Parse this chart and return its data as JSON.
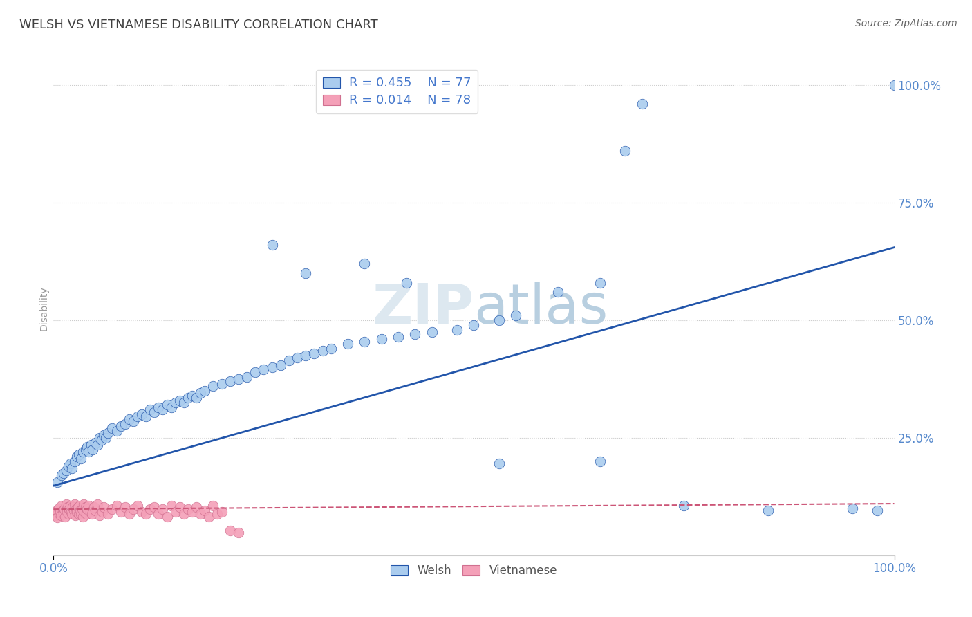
{
  "title": "WELSH VS VIETNAMESE DISABILITY CORRELATION CHART",
  "source": "Source: ZipAtlas.com",
  "ylabel": "Disability",
  "xlim": [
    0,
    1.0
  ],
  "ylim": [
    0.0,
    1.05
  ],
  "welsh_R": 0.455,
  "welsh_N": 77,
  "viet_R": 0.014,
  "viet_N": 78,
  "welsh_color": "#aaccee",
  "viet_color": "#f4a0b8",
  "welsh_line_color": "#2255aa",
  "viet_line_color": "#cc5577",
  "background_color": "#ffffff",
  "grid_color": "#cccccc",
  "watermark_zip_color": "#c8d8e8",
  "watermark_atlas_color": "#a8c0d8",
  "title_color": "#404040",
  "axis_label_color": "#5588cc",
  "legend_color": "#4477cc",
  "welsh_x": [
    0.005,
    0.01,
    0.012,
    0.015,
    0.018,
    0.02,
    0.022,
    0.025,
    0.028,
    0.03,
    0.033,
    0.035,
    0.038,
    0.04,
    0.042,
    0.045,
    0.047,
    0.05,
    0.052,
    0.055,
    0.057,
    0.06,
    0.062,
    0.065,
    0.07,
    0.075,
    0.08,
    0.085,
    0.09,
    0.095,
    0.1,
    0.105,
    0.11,
    0.115,
    0.12,
    0.125,
    0.13,
    0.135,
    0.14,
    0.145,
    0.15,
    0.155,
    0.16,
    0.165,
    0.17,
    0.175,
    0.18,
    0.19,
    0.2,
    0.21,
    0.22,
    0.23,
    0.24,
    0.25,
    0.26,
    0.27,
    0.28,
    0.29,
    0.3,
    0.31,
    0.32,
    0.33,
    0.35,
    0.37,
    0.39,
    0.41,
    0.43,
    0.45,
    0.48,
    0.5,
    0.53,
    0.55,
    0.6,
    0.65,
    0.68,
    0.7,
    0.98
  ],
  "welsh_y": [
    0.155,
    0.17,
    0.175,
    0.18,
    0.19,
    0.195,
    0.185,
    0.2,
    0.21,
    0.215,
    0.205,
    0.22,
    0.225,
    0.23,
    0.22,
    0.235,
    0.225,
    0.24,
    0.235,
    0.25,
    0.245,
    0.255,
    0.25,
    0.26,
    0.27,
    0.265,
    0.275,
    0.28,
    0.29,
    0.285,
    0.295,
    0.3,
    0.295,
    0.31,
    0.305,
    0.315,
    0.31,
    0.32,
    0.315,
    0.325,
    0.33,
    0.325,
    0.335,
    0.34,
    0.335,
    0.345,
    0.35,
    0.36,
    0.365,
    0.37,
    0.375,
    0.38,
    0.39,
    0.395,
    0.4,
    0.405,
    0.415,
    0.42,
    0.425,
    0.43,
    0.435,
    0.44,
    0.45,
    0.455,
    0.46,
    0.465,
    0.47,
    0.475,
    0.48,
    0.49,
    0.5,
    0.51,
    0.56,
    0.58,
    0.86,
    0.96,
    0.095
  ],
  "welsh_x_outliers": [
    0.26,
    0.3,
    0.37,
    0.42,
    0.53,
    0.65,
    0.75,
    0.85,
    0.95,
    1.0
  ],
  "welsh_y_outliers": [
    0.66,
    0.6,
    0.62,
    0.58,
    0.195,
    0.2,
    0.105,
    0.095,
    0.1,
    1.0
  ],
  "viet_x": [
    0.002,
    0.003,
    0.004,
    0.005,
    0.006,
    0.007,
    0.008,
    0.009,
    0.01,
    0.011,
    0.012,
    0.013,
    0.014,
    0.015,
    0.016,
    0.017,
    0.018,
    0.019,
    0.02,
    0.021,
    0.022,
    0.023,
    0.024,
    0.025,
    0.026,
    0.027,
    0.028,
    0.029,
    0.03,
    0.031,
    0.032,
    0.033,
    0.034,
    0.035,
    0.036,
    0.037,
    0.038,
    0.039,
    0.04,
    0.042,
    0.044,
    0.046,
    0.048,
    0.05,
    0.052,
    0.055,
    0.058,
    0.06,
    0.065,
    0.07,
    0.075,
    0.08,
    0.085,
    0.09,
    0.095,
    0.1,
    0.105,
    0.11,
    0.115,
    0.12,
    0.125,
    0.13,
    0.135,
    0.14,
    0.145,
    0.15,
    0.155,
    0.16,
    0.165,
    0.17,
    0.175,
    0.18,
    0.185,
    0.19,
    0.195,
    0.2,
    0.21,
    0.22
  ],
  "viet_y": [
    0.09,
    0.085,
    0.095,
    0.08,
    0.1,
    0.088,
    0.092,
    0.085,
    0.105,
    0.095,
    0.088,
    0.098,
    0.082,
    0.108,
    0.092,
    0.102,
    0.088,
    0.098,
    0.105,
    0.092,
    0.088,
    0.102,
    0.095,
    0.108,
    0.085,
    0.098,
    0.092,
    0.102,
    0.088,
    0.105,
    0.095,
    0.088,
    0.098,
    0.082,
    0.108,
    0.092,
    0.102,
    0.088,
    0.098,
    0.105,
    0.092,
    0.088,
    0.102,
    0.095,
    0.108,
    0.085,
    0.092,
    0.102,
    0.088,
    0.098,
    0.105,
    0.092,
    0.102,
    0.088,
    0.098,
    0.105,
    0.092,
    0.088,
    0.098,
    0.102,
    0.088,
    0.098,
    0.082,
    0.105,
    0.092,
    0.102,
    0.088,
    0.098,
    0.092,
    0.102,
    0.088,
    0.095,
    0.082,
    0.105,
    0.088,
    0.092,
    0.052,
    0.048
  ],
  "welsh_trend_x": [
    0.0,
    1.0
  ],
  "welsh_trend_y": [
    0.148,
    0.655
  ],
  "viet_trend_x": [
    0.0,
    1.0
  ],
  "viet_trend_y": [
    0.098,
    0.11
  ]
}
